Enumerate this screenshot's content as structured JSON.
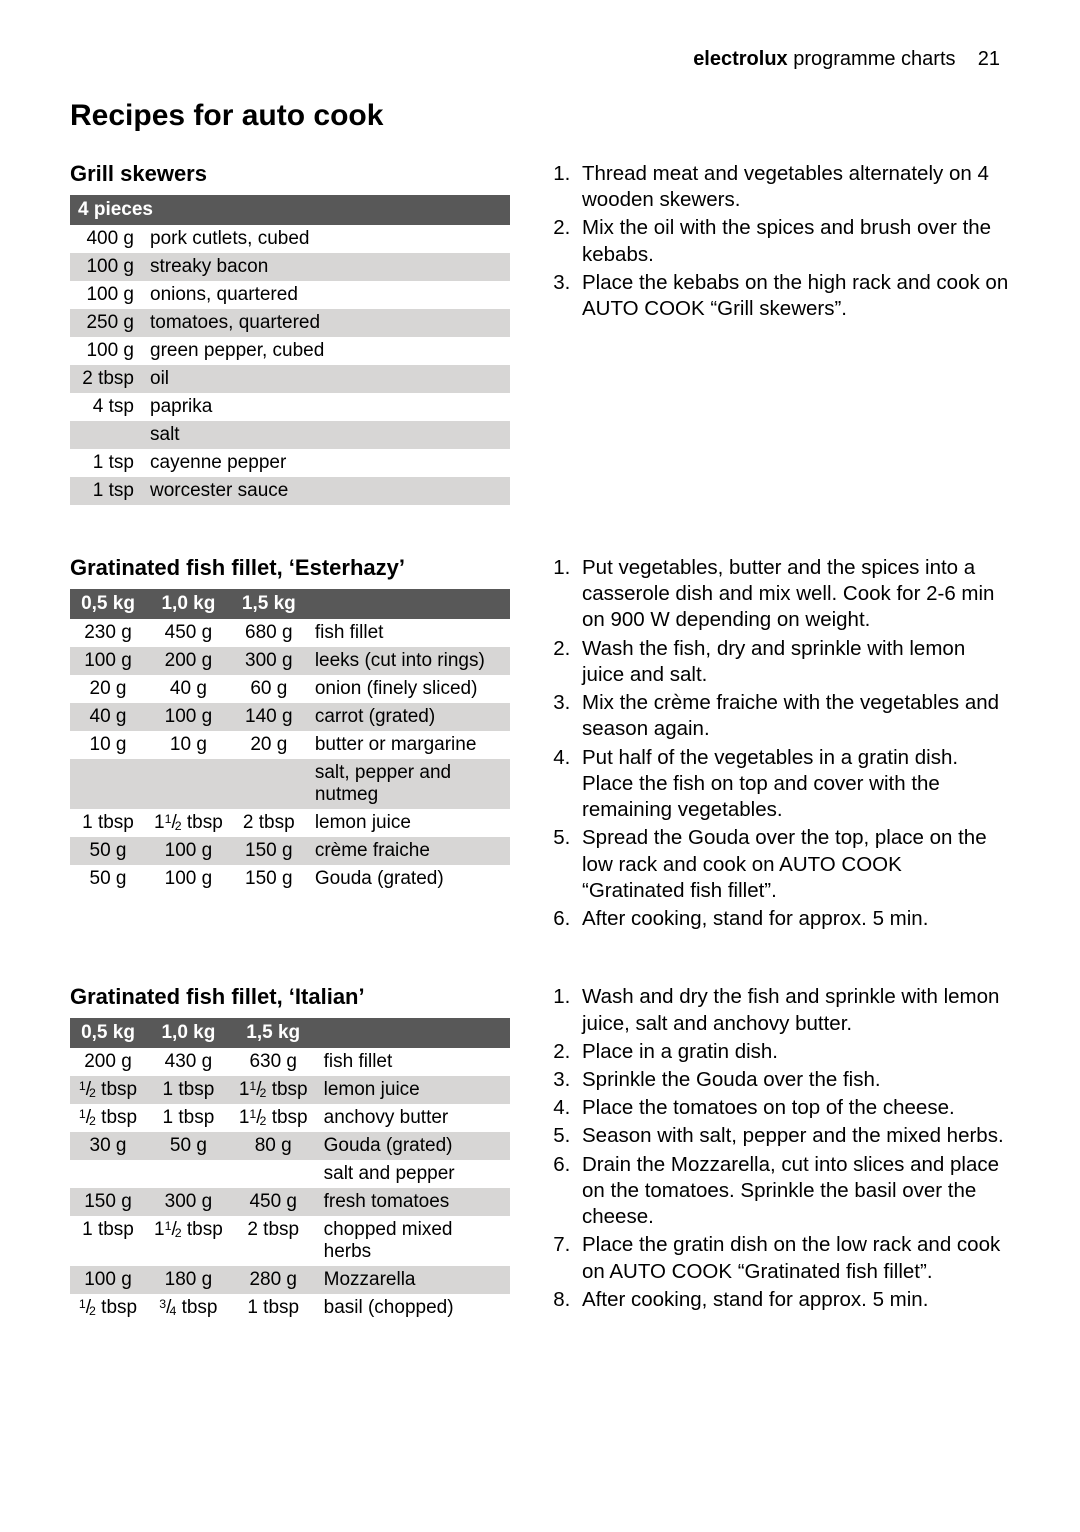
{
  "header": {
    "brand": "electrolux",
    "section": "programme charts",
    "page": "21"
  },
  "title": "Recipes for auto cook",
  "recipes": [
    {
      "title": "Grill skewers",
      "table": {
        "headers": [
          "4 pieces"
        ],
        "type": "single",
        "rows": [
          {
            "amounts": [
              "400 g"
            ],
            "desc": "pork cutlets, cubed"
          },
          {
            "amounts": [
              "100 g"
            ],
            "desc": "streaky bacon"
          },
          {
            "amounts": [
              "100 g"
            ],
            "desc": "onions, quartered"
          },
          {
            "amounts": [
              "250 g"
            ],
            "desc": "tomatoes, quartered"
          },
          {
            "amounts": [
              "100 g"
            ],
            "desc": "green pepper, cubed"
          },
          {
            "amounts": [
              "2 tbsp"
            ],
            "desc": "oil"
          },
          {
            "amounts": [
              "4 tsp"
            ],
            "desc": "paprika"
          },
          {
            "amounts": [
              ""
            ],
            "desc": "salt"
          },
          {
            "amounts": [
              "1 tsp"
            ],
            "desc": "cayenne pepper"
          },
          {
            "amounts": [
              "1 tsp"
            ],
            "desc": "worcester sauce"
          }
        ]
      },
      "steps": [
        "Thread meat and vegetables alternately on 4 wooden skewers.",
        "Mix the oil with the spices and brush over the kebabs.",
        "Place the kebabs on the high rack and cook on AUTO COOK “Grill skewers”."
      ]
    },
    {
      "title": "Gratinated fish fillet, ‘Esterhazy’",
      "table": {
        "headers": [
          "0,5 kg",
          "1,0 kg",
          "1,5 kg",
          ""
        ],
        "type": "multi",
        "rows": [
          {
            "amounts": [
              "230 g",
              "450 g",
              "680 g"
            ],
            "desc": "fish fillet"
          },
          {
            "amounts": [
              "100 g",
              "200 g",
              "300 g"
            ],
            "desc": "leeks (cut into rings)"
          },
          {
            "amounts": [
              "20 g",
              "40 g",
              "60 g"
            ],
            "desc": "onion (finely sliced)"
          },
          {
            "amounts": [
              "40 g",
              "100 g",
              "140 g"
            ],
            "desc": "carrot (grated)"
          },
          {
            "amounts": [
              "10 g",
              "10 g",
              "20 g"
            ],
            "desc": "butter or margarine"
          },
          {
            "amounts": [
              "",
              "",
              ""
            ],
            "desc": "salt, pepper and nutmeg"
          },
          {
            "amounts": [
              "1 tbsp",
              "1½ tbsp",
              "2 tbsp"
            ],
            "desc": "lemon juice"
          },
          {
            "amounts": [
              "50 g",
              "100 g",
              "150 g"
            ],
            "desc": "crème fraiche"
          },
          {
            "amounts": [
              "50 g",
              "100 g",
              "150 g"
            ],
            "desc": "Gouda (grated)"
          }
        ]
      },
      "steps": [
        "Put vegetables, butter and the spices into a casserole dish and mix well. Cook for 2-6 min on 900 W depending on weight.",
        "Wash the fish, dry and sprinkle with lemon juice and salt.",
        "Mix the crème fraiche with the vegetables and season again.",
        "Put half of the vegetables in a gratin dish. Place the fish on top and cover with the remaining vegetables.",
        "Spread the Gouda over the top, place on the low rack and cook on AUTO COOK  “Gratinated fish fillet”.",
        "After cooking, stand for approx. 5 min."
      ]
    },
    {
      "title": "Gratinated fish fillet, ‘Italian’",
      "table": {
        "headers": [
          "0,5 kg",
          "1,0 kg",
          "1,5 kg",
          ""
        ],
        "type": "multi",
        "rows": [
          {
            "amounts": [
              "200 g",
              "430 g",
              "630 g"
            ],
            "desc": "fish fillet"
          },
          {
            "amounts": [
              "½ tbsp",
              "1 tbsp",
              "1½ tbsp"
            ],
            "desc": "lemon juice"
          },
          {
            "amounts": [
              "½ tbsp",
              "1 tbsp",
              "1½ tbsp"
            ],
            "desc": "anchovy butter"
          },
          {
            "amounts": [
              "30 g",
              "50 g",
              "80 g"
            ],
            "desc": "Gouda (grated)"
          },
          {
            "amounts": [
              "",
              "",
              ""
            ],
            "desc": "salt and pepper"
          },
          {
            "amounts": [
              "150 g",
              "300 g",
              "450 g"
            ],
            "desc": "fresh tomatoes"
          },
          {
            "amounts": [
              "1 tbsp",
              "1½ tbsp",
              "2 tbsp"
            ],
            "desc": "chopped mixed herbs"
          },
          {
            "amounts": [
              "100 g",
              "180 g",
              "280 g"
            ],
            "desc": "Mozzarella"
          },
          {
            "amounts": [
              "½ tbsp",
              "¾ tbsp",
              "1 tbsp"
            ],
            "desc": "basil (chopped)"
          }
        ]
      },
      "steps": [
        "Wash and dry the fish and sprinkle with lemon juice, salt and anchovy butter.",
        "Place in a gratin dish.",
        "Sprinkle the Gouda over the fish.",
        "Place the tomatoes on top of the cheese.",
        "Season with salt, pepper and the mixed herbs.",
        "Drain the Mozzarella, cut into slices and place on the tomatoes. Sprinkle the basil over the cheese.",
        "Place the gratin dish on the low rack and cook on AUTO COOK “Gratinated fish fillet”.",
        "After cooking, stand for approx. 5 min."
      ]
    }
  ]
}
